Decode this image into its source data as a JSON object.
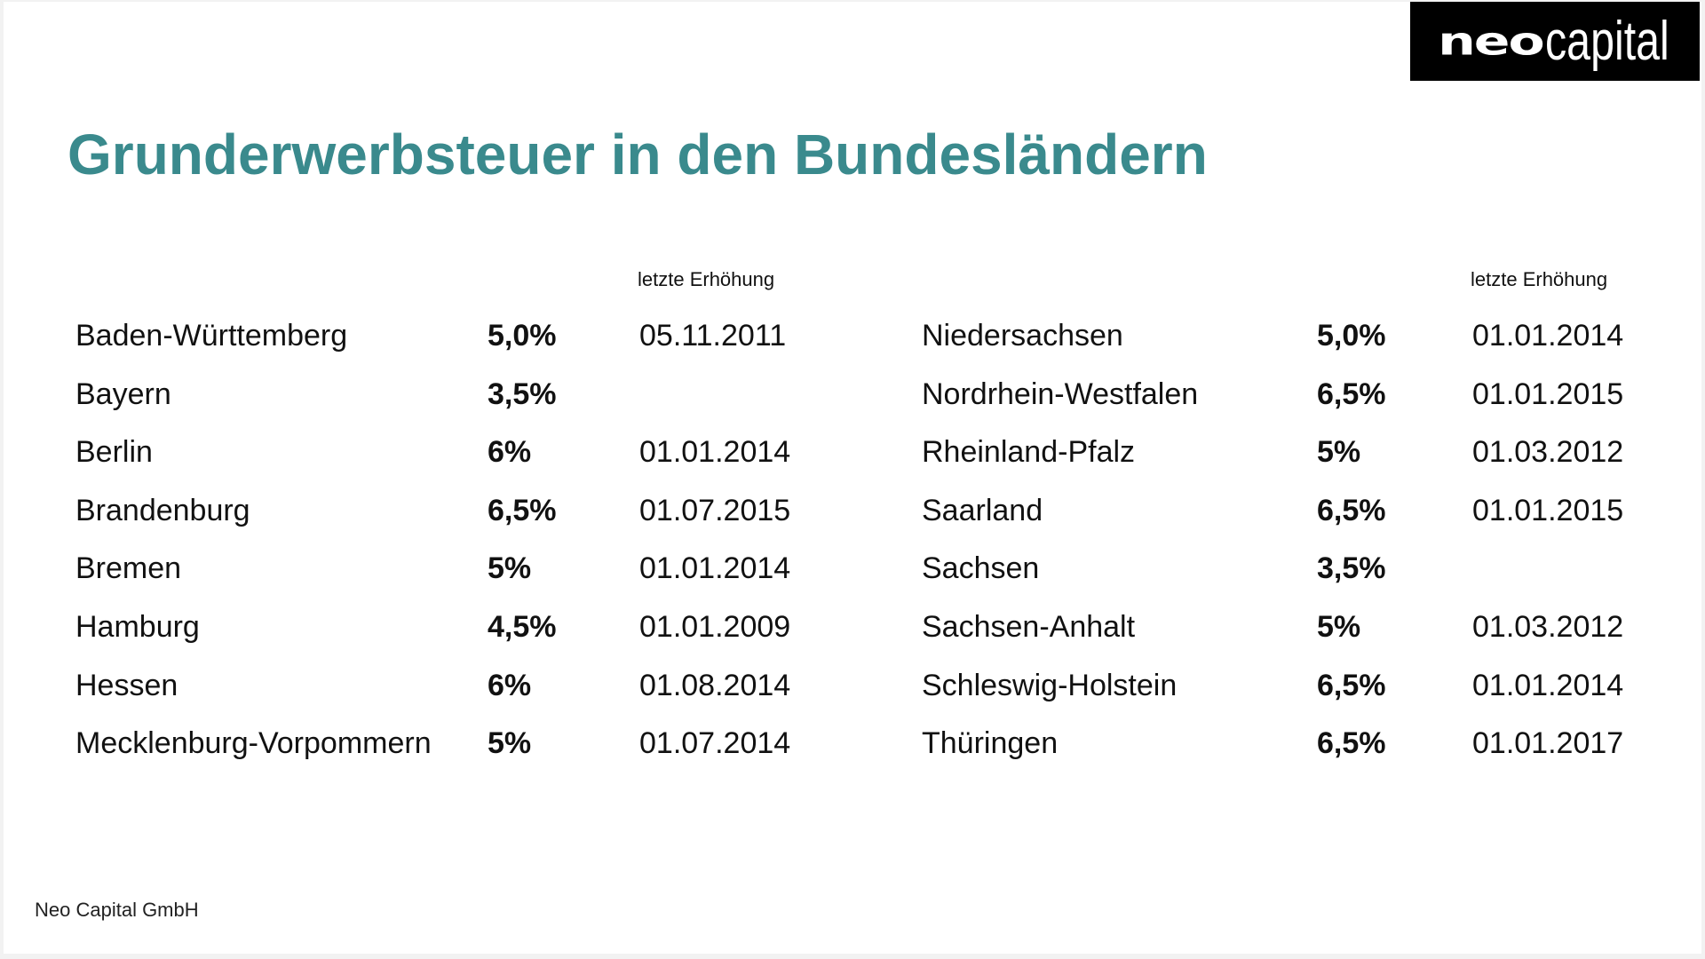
{
  "logo": {
    "part1": "neo",
    "part2": "capital"
  },
  "title": "Grunderwerbsteuer in den Bundesländern",
  "left_table": {
    "date_header": "letzte Erhöhung",
    "rows": [
      {
        "state": "Baden-Württemberg",
        "rate": "5,0%",
        "date": "05.11.2011"
      },
      {
        "state": "Bayern",
        "rate": "3,5%",
        "date": ""
      },
      {
        "state": "Berlin",
        "rate": "6%",
        "date": "01.01.2014"
      },
      {
        "state": "Brandenburg",
        "rate": "6,5%",
        "date": "01.07.2015"
      },
      {
        "state": "Bremen",
        "rate": "5%",
        "date": "01.01.2014"
      },
      {
        "state": "Hamburg",
        "rate": "4,5%",
        "date": "01.01.2009"
      },
      {
        "state": "Hessen",
        "rate": "6%",
        "date": "01.08.2014"
      },
      {
        "state": "Mecklenburg-Vorpommern",
        "rate": "5%",
        "date": "01.07.2014"
      }
    ]
  },
  "right_table": {
    "date_header": "letzte Erhöhung",
    "rows": [
      {
        "state": "Niedersachsen",
        "rate": "5,0%",
        "date": "01.01.2014"
      },
      {
        "state": "Nordrhein-Westfalen",
        "rate": "6,5%",
        "date": "01.01.2015"
      },
      {
        "state": "Rheinland-Pfalz",
        "rate": "5%",
        "date": "01.03.2012"
      },
      {
        "state": "Saarland",
        "rate": "6,5%",
        "date": "01.01.2015"
      },
      {
        "state": "Sachsen",
        "rate": "3,5%",
        "date": ""
      },
      {
        "state": "Sachsen-Anhalt",
        "rate": "5%",
        "date": "01.03.2012"
      },
      {
        "state": "Schleswig-Holstein",
        "rate": "6,5%",
        "date": "01.01.2014"
      },
      {
        "state": "Thüringen",
        "rate": "6,5%",
        "date": "01.01.2017"
      }
    ]
  },
  "footer": "Neo Capital GmbH",
  "colors": {
    "title": "#3a8a8d",
    "logo_background": "#000000",
    "text": "#111111"
  }
}
